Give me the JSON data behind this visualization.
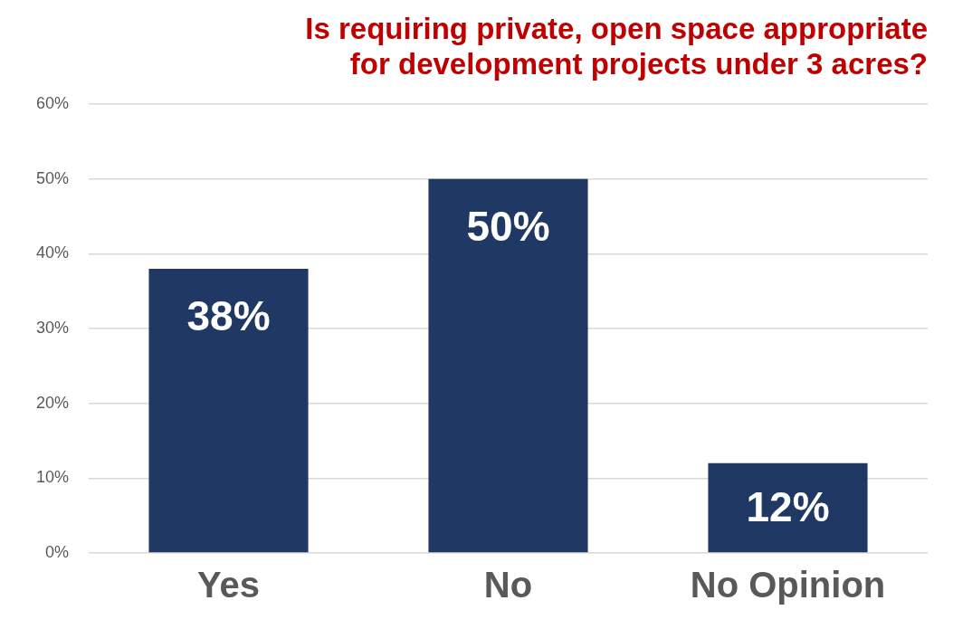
{
  "chart_data": {
    "type": "bar",
    "title": "Is requiring private, open space appropriate\nfor development projects under 3 acres?",
    "categories": [
      "Yes",
      "No",
      "No Opinion"
    ],
    "values": [
      38,
      50,
      12
    ],
    "color": "#203864",
    "ylim": [
      0,
      60
    ],
    "yticks": [
      {
        "value": 0,
        "label": "0%"
      },
      {
        "value": 10,
        "label": "10%"
      },
      {
        "value": 20,
        "label": "20%"
      },
      {
        "value": 30,
        "label": "30%"
      },
      {
        "value": 40,
        "label": "40%"
      },
      {
        "value": 50,
        "label": "50%"
      },
      {
        "value": 60,
        "label": "60%"
      }
    ],
    "value_labels": [
      "38%",
      "50%",
      "12%"
    ],
    "grid": "y",
    "legend": false
  }
}
